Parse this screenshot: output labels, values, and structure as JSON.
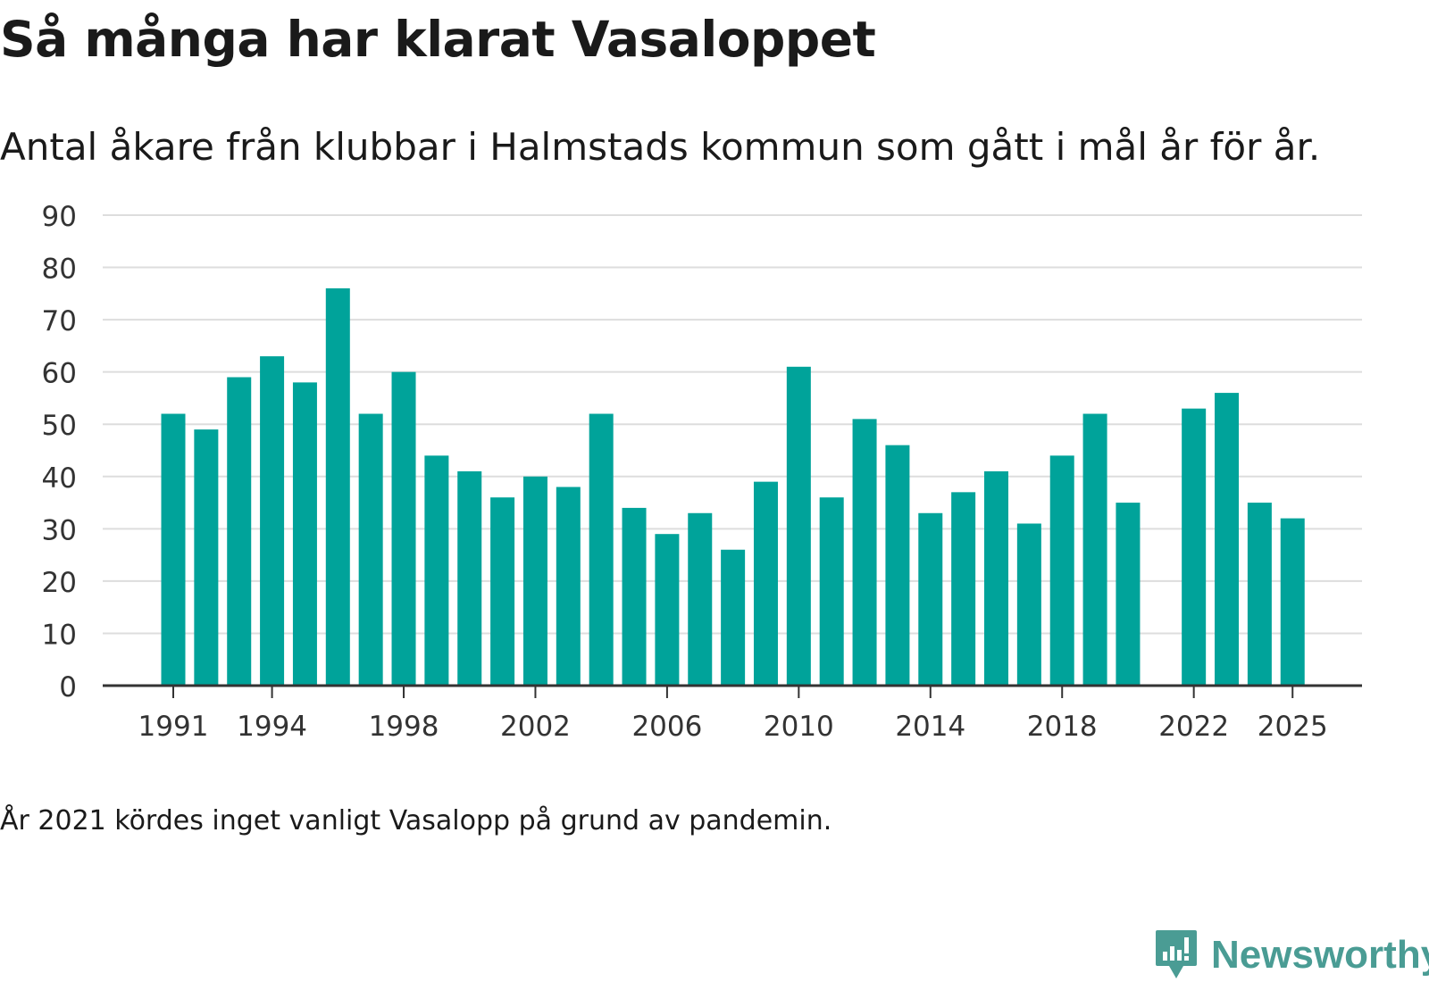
{
  "title": "Så många har klarat Vasaloppet",
  "subtitle": "Antal åkare från klubbar i Halmstads kommun som gått i mål år för år.",
  "footnote": "År 2021 kördes inget vanligt Vasalopp på grund av pandemin.",
  "brand": {
    "name": "Newsworthy",
    "logo_icon": "newsworthy-logo-icon",
    "color": "#4a9c94"
  },
  "colors": {
    "bar": "#00a39a",
    "grid": "#dddddd",
    "axis": "#333333"
  },
  "chart_data": {
    "type": "bar",
    "title": "Så många har klarat Vasaloppet",
    "subtitle": "Antal åkare från klubbar i Halmstads kommun som gått i mål år för år.",
    "xlabel": "",
    "ylabel": "",
    "ylim": [
      0,
      90
    ],
    "yticks": [
      0,
      10,
      20,
      30,
      40,
      50,
      60,
      70,
      80,
      90
    ],
    "grid": true,
    "categories": [
      1991,
      1992,
      1993,
      1994,
      1995,
      1996,
      1997,
      1998,
      1999,
      2000,
      2001,
      2002,
      2003,
      2004,
      2005,
      2006,
      2007,
      2008,
      2009,
      2010,
      2011,
      2012,
      2013,
      2014,
      2015,
      2016,
      2017,
      2018,
      2019,
      2020,
      2021,
      2022,
      2023,
      2024,
      2025
    ],
    "values": [
      52,
      49,
      59,
      63,
      58,
      76,
      52,
      60,
      44,
      41,
      36,
      40,
      38,
      52,
      34,
      29,
      33,
      26,
      39,
      61,
      36,
      51,
      46,
      33,
      37,
      41,
      31,
      44,
      52,
      35,
      null,
      53,
      56,
      35,
      32
    ],
    "xtick_labels": [
      "1991",
      "1994",
      "1998",
      "2002",
      "2006",
      "2010",
      "2014",
      "2018",
      "2022",
      "2025"
    ]
  }
}
